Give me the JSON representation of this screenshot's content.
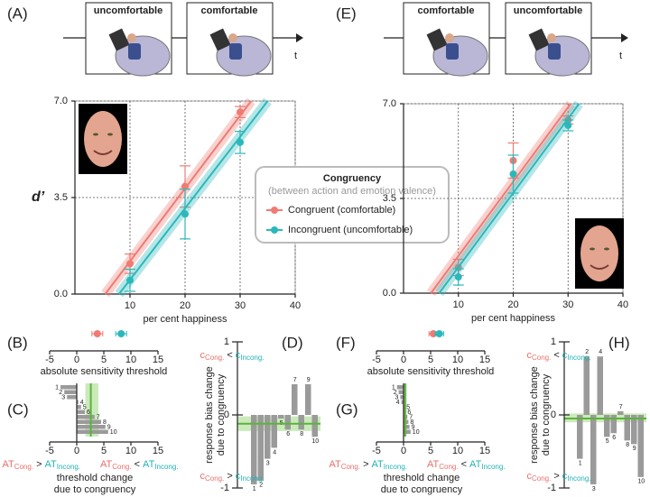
{
  "timelines": [
    {
      "letter": "(A)",
      "boxes": [
        "uncomfortable",
        "comfortable"
      ],
      "axis_label": "t"
    },
    {
      "letter": "(E)",
      "boxes": [
        "comfortable",
        "uncomfortable"
      ],
      "axis_label": "t"
    }
  ],
  "chart_data": [
    {
      "type": "scatter",
      "xlabel": "per cent happiness",
      "ylabel": "d’",
      "xlim": [
        0,
        40
      ],
      "xticks": [
        10,
        20,
        30,
        40
      ],
      "ylim": [
        0,
        7
      ],
      "yticks": [
        {
          "value": 0,
          "label": "0.0"
        },
        3.5,
        {
          "value": 7,
          "label": "7.0"
        }
      ],
      "grid": true,
      "x": [
        10,
        20,
        30
      ],
      "legend_title": "Congruency",
      "legend_subtitle": "(between action and emotion valence)",
      "series": [
        {
          "name": "Congruent (comfortable)",
          "color": "#ef7b73",
          "values": [
            1.1,
            3.9,
            6.6
          ],
          "errors": [
            0.35,
            0.75,
            0.2
          ],
          "fit_x": [
            5.5,
            32
          ],
          "fit_values": [
            0,
            7
          ]
        },
        {
          "name": "Incongruent (uncomfortable)",
          "color": "#2bb8bb",
          "values": [
            0.5,
            2.9,
            5.5
          ],
          "errors": [
            0.4,
            0.9,
            0.4
          ],
          "fit_x": [
            8,
            35
          ],
          "fit_values": [
            0,
            7
          ]
        }
      ]
    },
    {
      "type": "dot",
      "panel": "(B)",
      "xlabel": "absolute sensitivity threshold",
      "xlim": [
        -5,
        15
      ],
      "xticks": [
        -5,
        0,
        5,
        10,
        15
      ],
      "series": [
        {
          "color": "#ef7b73",
          "values": [
            3.8
          ],
          "errors": [
            1
          ]
        },
        {
          "color": "#2bb8bb",
          "values": [
            8.2
          ],
          "errors": [
            1
          ]
        }
      ]
    },
    {
      "type": "hbar",
      "panel": "(C)",
      "xlabel": [
        "threshold change",
        "due to congruency"
      ],
      "xlim": [
        -5,
        15
      ],
      "xticks": [
        -5,
        0,
        5,
        10,
        15
      ],
      "color": "#9a9a9a",
      "categories": [
        "1",
        "2",
        "3",
        "4",
        "5",
        "6",
        "7",
        "8",
        "9",
        "10"
      ],
      "values": [
        -3,
        -2.3,
        -1.8,
        0.3,
        0.8,
        1.5,
        3.3,
        4.5,
        5.3,
        5.8
      ],
      "mean": 2.6,
      "mean_band": [
        1.6,
        4
      ],
      "left_label": [
        "AT",
        "Cong.",
        ">",
        "AT",
        "Incong."
      ],
      "right_label": [
        "AT",
        "Cong.",
        "<",
        "AT",
        "Incong."
      ]
    },
    {
      "type": "vbar",
      "panel": "(D)",
      "ylabel": [
        "response bias change",
        "due to congruency"
      ],
      "ylim": [
        -1,
        1
      ],
      "yticks": [
        -1,
        0,
        1
      ],
      "color": "#9a9a9a",
      "categories": [
        "1",
        "2",
        "3",
        "4",
        "5",
        "6",
        "7",
        "8",
        "9",
        "10"
      ],
      "values": [
        -0.95,
        -0.9,
        -0.6,
        -0.45,
        -0.05,
        -0.2,
        0.42,
        -0.2,
        0.42,
        -0.3
      ],
      "mean": -0.12,
      "mean_band": [
        -0.22,
        -0.02
      ],
      "top_label": [
        "c",
        "Cong.",
        "<",
        "c",
        "Incong."
      ],
      "bottom_label": [
        "c",
        "Cong.",
        ">",
        "c",
        "Incong."
      ]
    },
    {
      "type": "scatter",
      "xlabel": "per cent happiness",
      "xlim": [
        0,
        40
      ],
      "xticks": [
        10,
        20,
        30,
        40
      ],
      "ylim": [
        0,
        7
      ],
      "yticks": [
        {
          "value": 0,
          "label": "0.0"
        },
        3.5,
        {
          "value": 7,
          "label": "7.0"
        }
      ],
      "grid": true,
      "x": [
        10,
        20,
        30
      ],
      "series": [
        {
          "color": "#ef7b73",
          "values": [
            0.95,
            4.9,
            6.4
          ],
          "errors": [
            0.3,
            0.65,
            0.15
          ],
          "fit_x": [
            5,
            30.5
          ],
          "fit_values": [
            0,
            7
          ]
        },
        {
          "color": "#2bb8bb",
          "values": [
            0.6,
            4.4,
            6.2
          ],
          "errors": [
            0.3,
            0.7,
            0.2
          ],
          "fit_x": [
            6.5,
            32
          ],
          "fit_values": [
            0,
            7
          ]
        }
      ]
    },
    {
      "type": "dot",
      "panel": "(F)",
      "xlabel": "absolute sensitivity threshold",
      "xlim": [
        -5,
        15
      ],
      "xticks": [
        -5,
        0,
        5,
        10,
        15
      ],
      "series": [
        {
          "color": "#ef7b73",
          "values": [
            5.5
          ],
          "errors": [
            0.8
          ]
        },
        {
          "color": "#2bb8bb",
          "values": [
            6.6
          ],
          "errors": [
            0.8
          ]
        }
      ]
    },
    {
      "type": "hbar",
      "panel": "(G)",
      "xlabel": [
        "threshold change",
        "due to congruency"
      ],
      "xlim": [
        -5,
        15
      ],
      "xticks": [
        -5,
        0,
        5,
        10,
        15
      ],
      "color": "#9a9a9a",
      "categories": [
        "1",
        "2",
        "3",
        "4",
        "5",
        "6",
        "7",
        "8",
        "9",
        "10"
      ],
      "values": [
        -1.2,
        -0.9,
        -0.6,
        -0.4,
        0.2,
        0.4,
        0.7,
        0.9,
        1.1,
        1.3
      ],
      "mean": 0.3,
      "mean_band": [
        0,
        0.6
      ],
      "left_label": [
        "AT",
        "Cong.",
        ">",
        "AT",
        "Incong."
      ],
      "right_label": [
        "AT",
        "Cong.",
        "<",
        "AT",
        "Incong."
      ]
    },
    {
      "type": "vbar",
      "panel": "(H)",
      "ylabel": [
        "response bias change",
        "due to congruency"
      ],
      "ylim": [
        -1,
        1
      ],
      "yticks": [
        -1,
        0,
        1
      ],
      "color": "#9a9a9a",
      "categories": [
        "1",
        "2",
        "3",
        "4",
        "5",
        "6",
        "7",
        "8",
        "9",
        "10"
      ],
      "values": [
        -0.6,
        0.8,
        -0.95,
        0.8,
        -0.3,
        -0.25,
        0.05,
        -0.35,
        -0.4,
        -0.85
      ],
      "mean": -0.05,
      "mean_band": [
        -0.1,
        0.02
      ],
      "top_label": [
        "c",
        "Cong.",
        "<",
        "c",
        "Incong."
      ],
      "bottom_label": [
        "c",
        "Cong.",
        ">",
        "c",
        "Incong."
      ]
    }
  ]
}
